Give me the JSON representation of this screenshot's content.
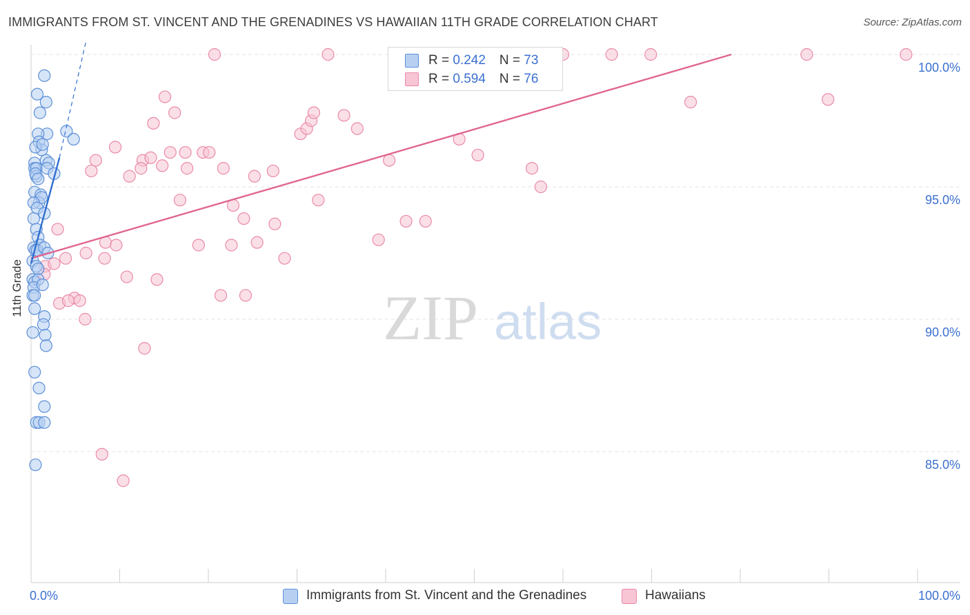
{
  "title": "IMMIGRANTS FROM ST. VINCENT AND THE GRENADINES VS HAWAIIAN 11TH GRADE CORRELATION CHART",
  "source": "Source: ZipAtlas.com",
  "watermark": {
    "zip": "ZIP",
    "atlas": "atlas"
  },
  "colors": {
    "blue": "#5b8fd6",
    "blue_fill": "#b7d0f2",
    "blue_line": "#2f6fd0",
    "pink": "#e98aa8",
    "pink_fill": "#f7c5d4",
    "pink_line": "#e0668f",
    "grid": "#e3e3e3",
    "tick_text": "#3a6fd0"
  },
  "legend_top": [
    {
      "r_label": "R = ",
      "r_value": "0.242",
      "n_label": "N = ",
      "n_value": "73",
      "series": "blue"
    },
    {
      "r_label": "R = ",
      "r_value": "0.594",
      "n_label": "N = ",
      "n_value": "76",
      "series": "pink"
    }
  ],
  "legend_bottom": [
    {
      "label": "Immigrants from St. Vincent and the Grenadines",
      "series": "blue"
    },
    {
      "label": "Hawaiians",
      "series": "pink"
    }
  ],
  "chart_data": {
    "type": "scatter",
    "title": "IMMIGRANTS FROM ST. VINCENT AND THE GRENADINES VS HAWAIIAN 11TH GRADE CORRELATION CHART",
    "xlabel": "",
    "ylabel": "11th Grade",
    "xlim": [
      0,
      100
    ],
    "ylim": [
      80.5,
      101.5
    ],
    "x_tick_labels": [
      "0.0%",
      "100.0%"
    ],
    "y_ticks": [
      85,
      90,
      95,
      100
    ],
    "y_tick_labels": [
      "85.0%",
      "90.0%",
      "95.0%",
      "100.0%"
    ],
    "grid": true,
    "series": [
      {
        "name": "Immigrants from St. Vincent and the Grenadines",
        "color": "blue",
        "R": 0.242,
        "N": 73,
        "trend": {
          "x": [
            0.0,
            3.2
          ],
          "y": [
            92.1,
            96.1
          ]
        },
        "trend_extended": {
          "x": [
            3.2,
            6.2
          ],
          "y": [
            96.1,
            100.5
          ]
        },
        "points": [
          [
            1.5,
            99.2
          ],
          [
            0.7,
            98.5
          ],
          [
            1.7,
            98.2
          ],
          [
            1.0,
            97.8
          ],
          [
            4.0,
            97.1
          ],
          [
            4.8,
            96.8
          ],
          [
            1.8,
            97.0
          ],
          [
            0.8,
            97.0
          ],
          [
            0.9,
            96.7
          ],
          [
            1.2,
            96.4
          ],
          [
            0.5,
            96.5
          ],
          [
            1.3,
            96.6
          ],
          [
            1.7,
            96.0
          ],
          [
            0.4,
            95.9
          ],
          [
            0.4,
            95.7
          ],
          [
            2.0,
            95.9
          ],
          [
            0.6,
            95.7
          ],
          [
            0.6,
            95.4
          ],
          [
            1.8,
            95.7
          ],
          [
            2.6,
            95.5
          ],
          [
            0.5,
            95.5
          ],
          [
            0.8,
            95.3
          ],
          [
            0.4,
            94.8
          ],
          [
            1.1,
            94.7
          ],
          [
            0.9,
            94.4
          ],
          [
            1.2,
            94.6
          ],
          [
            0.3,
            94.4
          ],
          [
            0.7,
            94.2
          ],
          [
            1.5,
            94.0
          ],
          [
            0.3,
            93.8
          ],
          [
            0.6,
            93.4
          ],
          [
            0.8,
            93.1
          ],
          [
            0.3,
            92.7
          ],
          [
            1.0,
            92.8
          ],
          [
            0.5,
            92.6
          ],
          [
            0.7,
            92.6
          ],
          [
            1.5,
            92.7
          ],
          [
            1.9,
            92.5
          ],
          [
            0.2,
            92.2
          ],
          [
            0.6,
            92.0
          ],
          [
            0.8,
            91.9
          ],
          [
            0.2,
            91.5
          ],
          [
            0.4,
            91.4
          ],
          [
            0.8,
            91.5
          ],
          [
            0.3,
            91.2
          ],
          [
            1.3,
            91.3
          ],
          [
            0.2,
            90.9
          ],
          [
            0.4,
            90.9
          ],
          [
            0.4,
            90.4
          ],
          [
            1.5,
            90.1
          ],
          [
            1.4,
            89.8
          ],
          [
            0.2,
            89.5
          ],
          [
            1.6,
            89.4
          ],
          [
            1.7,
            89.0
          ],
          [
            0.4,
            88.0
          ],
          [
            0.9,
            87.4
          ],
          [
            1.5,
            86.7
          ],
          [
            0.6,
            86.1
          ],
          [
            0.9,
            86.1
          ],
          [
            1.5,
            86.1
          ],
          [
            0.5,
            84.5
          ]
        ]
      },
      {
        "name": "Hawaiians",
        "color": "pink",
        "R": 0.594,
        "N": 76,
        "trend": {
          "x": [
            0.0,
            79.0
          ],
          "y": [
            92.3,
            100.0
          ]
        },
        "points": [
          [
            20.7,
            100.0
          ],
          [
            33.5,
            100.0
          ],
          [
            60.0,
            100.0
          ],
          [
            65.5,
            100.0
          ],
          [
            69.9,
            100.0
          ],
          [
            87.5,
            100.0
          ],
          [
            98.7,
            100.0
          ],
          [
            15.1,
            98.4
          ],
          [
            16.2,
            97.8
          ],
          [
            74.4,
            98.2
          ],
          [
            89.9,
            98.3
          ],
          [
            13.8,
            97.4
          ],
          [
            30.4,
            97.0
          ],
          [
            31.1,
            97.2
          ],
          [
            31.6,
            97.5
          ],
          [
            31.9,
            97.8
          ],
          [
            35.3,
            97.7
          ],
          [
            36.8,
            97.2
          ],
          [
            48.3,
            96.8
          ],
          [
            9.5,
            96.5
          ],
          [
            7.3,
            96.0
          ],
          [
            12.6,
            96.0
          ],
          [
            13.5,
            96.1
          ],
          [
            15.7,
            96.3
          ],
          [
            17.4,
            96.3
          ],
          [
            19.4,
            96.3
          ],
          [
            20.1,
            96.3
          ],
          [
            40.4,
            96.0
          ],
          [
            50.4,
            96.2
          ],
          [
            6.8,
            95.6
          ],
          [
            11.1,
            95.4
          ],
          [
            12.4,
            95.7
          ],
          [
            14.8,
            95.8
          ],
          [
            17.6,
            95.7
          ],
          [
            21.7,
            95.7
          ],
          [
            25.2,
            95.4
          ],
          [
            27.3,
            95.6
          ],
          [
            56.5,
            95.7
          ],
          [
            57.5,
            95.0
          ],
          [
            16.8,
            94.5
          ],
          [
            22.8,
            94.3
          ],
          [
            32.4,
            94.5
          ],
          [
            24.0,
            93.8
          ],
          [
            27.5,
            93.6
          ],
          [
            42.3,
            93.7
          ],
          [
            44.5,
            93.7
          ],
          [
            3.0,
            93.4
          ],
          [
            8.4,
            92.9
          ],
          [
            9.6,
            92.8
          ],
          [
            18.9,
            92.8
          ],
          [
            22.6,
            92.8
          ],
          [
            25.5,
            92.9
          ],
          [
            39.2,
            93.0
          ],
          [
            6.2,
            92.5
          ],
          [
            8.3,
            92.3
          ],
          [
            3.9,
            92.3
          ],
          [
            28.6,
            92.3
          ],
          [
            1.6,
            92.0
          ],
          [
            2.6,
            92.1
          ],
          [
            1.5,
            91.7
          ],
          [
            10.8,
            91.6
          ],
          [
            14.2,
            91.5
          ],
          [
            21.4,
            90.9
          ],
          [
            24.2,
            90.9
          ],
          [
            4.9,
            90.8
          ],
          [
            3.2,
            90.6
          ],
          [
            4.2,
            90.7
          ],
          [
            5.5,
            90.7
          ],
          [
            6.1,
            90.0
          ],
          [
            12.8,
            88.9
          ],
          [
            8.0,
            84.9
          ],
          [
            10.4,
            83.9
          ]
        ]
      }
    ]
  }
}
